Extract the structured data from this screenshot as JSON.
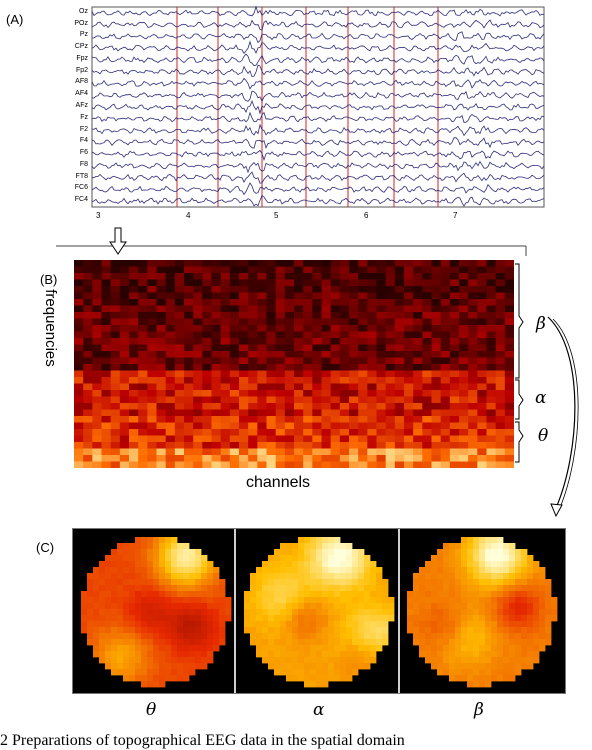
{
  "panels": {
    "a_label": "(A)",
    "b_label": "(B)",
    "c_label": "(C)"
  },
  "eeg": {
    "channels": [
      "Oz",
      "POz",
      "Pz",
      "CPz",
      "Fpz",
      "Fp2",
      "AF8",
      "AF4",
      "AFz",
      "Fz",
      "F2",
      "F4",
      "F6",
      "F8",
      "FT8",
      "FC6",
      "FC4"
    ],
    "time_ticks": [
      "3",
      "4",
      "5",
      "6",
      "7"
    ]
  },
  "spectrogram": {
    "ylabel": "frequencies",
    "xlabel": "channels",
    "bands": [
      "β",
      "α",
      "θ"
    ]
  },
  "topomaps": {
    "labels": [
      "θ",
      "α",
      "β"
    ]
  },
  "caption": "2 Preparations of topographical EEG data in the spatial domain"
}
